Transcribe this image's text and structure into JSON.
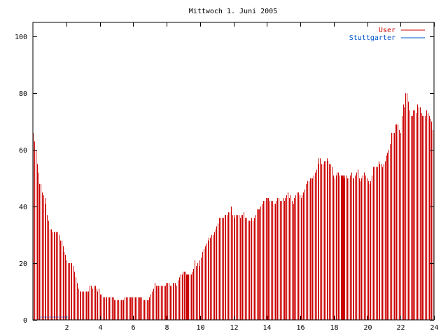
{
  "chart_data": {
    "type": "bar",
    "title": "Mittwoch 1. Juni 2005",
    "xlabel": "",
    "ylabel": "",
    "xlim": [
      0,
      24
    ],
    "ylim": [
      0,
      105
    ],
    "x_ticks": [
      2,
      4,
      6,
      8,
      10,
      12,
      14,
      16,
      18,
      20,
      22,
      24
    ],
    "y_ticks": [
      0,
      20,
      40,
      60,
      80,
      100
    ],
    "grid": false,
    "legend_position": "top-right",
    "series": [
      {
        "name": "User",
        "color": "#cc0000",
        "values": [
          66,
          63,
          60,
          55,
          52,
          48,
          48,
          45,
          44,
          43,
          41,
          37,
          35,
          32,
          32,
          31,
          31,
          31,
          31,
          31,
          30,
          28,
          28,
          26,
          24,
          23,
          21,
          20,
          20,
          20,
          20,
          19,
          17,
          15,
          13,
          11,
          10,
          10,
          10,
          10,
          10,
          10,
          10,
          10,
          12,
          12,
          11,
          12,
          12,
          11,
          10,
          11,
          9,
          9,
          8,
          8,
          8,
          8,
          8,
          8,
          8,
          8,
          8,
          7,
          7,
          7,
          7,
          7,
          7,
          7,
          7,
          8,
          8,
          8,
          8,
          8,
          8,
          8,
          8,
          8,
          8,
          8,
          8,
          8,
          8,
          7,
          7,
          7,
          7,
          7,
          8,
          9,
          10,
          11,
          13,
          12,
          12,
          12,
          12,
          12,
          12,
          12,
          12,
          13,
          13,
          13,
          12,
          12,
          13,
          13,
          13,
          12,
          14,
          15,
          16,
          16,
          17,
          17,
          17,
          16,
          16,
          16,
          16,
          17,
          18,
          21,
          19,
          20,
          21,
          19,
          22,
          24,
          25,
          26,
          27,
          28,
          29,
          29,
          30,
          30,
          31,
          32,
          33,
          34,
          36,
          36,
          36,
          36,
          37,
          37,
          37,
          38,
          38,
          40,
          37,
          36,
          37,
          37,
          37,
          37,
          36,
          37,
          37,
          38,
          36,
          36,
          35,
          35,
          35,
          36,
          35,
          36,
          37,
          39,
          39,
          39,
          40,
          41,
          42,
          42,
          43,
          43,
          43,
          42,
          42,
          42,
          41,
          41,
          42,
          43,
          43,
          42,
          42,
          43,
          42,
          43,
          44,
          45,
          43,
          44,
          42,
          41,
          43,
          44,
          45,
          45,
          44,
          43,
          44,
          45,
          46,
          48,
          49,
          49,
          50,
          50,
          50,
          51,
          52,
          53,
          55,
          57,
          57,
          55,
          55,
          56,
          56,
          57,
          56,
          55,
          55,
          54,
          51,
          50,
          51,
          52,
          52,
          51,
          51,
          51,
          50,
          51,
          51,
          50,
          50,
          51,
          52,
          50,
          50,
          51,
          52,
          53,
          50,
          49,
          50,
          51,
          52,
          51,
          50,
          49,
          48,
          49,
          51,
          54,
          54,
          54,
          54,
          56,
          55,
          55,
          54,
          55,
          56,
          58,
          59,
          60,
          62,
          66,
          66,
          66,
          69,
          69,
          69,
          67,
          66,
          72,
          76,
          75,
          80,
          80,
          77,
          74,
          72,
          72,
          74,
          74,
          73,
          76,
          75,
          75,
          73,
          72,
          72,
          72,
          74,
          73,
          72,
          71,
          70,
          67
        ],
        "highlight_indices": [
          119,
          239
        ]
      },
      {
        "name": "Stuttgarter",
        "color": "#0055cc",
        "values": [
          0,
          0,
          0,
          0,
          0,
          1,
          1,
          1,
          1,
          1,
          1,
          1,
          1,
          1,
          1,
          1,
          1,
          1,
          1,
          1,
          1,
          1,
          1,
          1,
          1,
          1,
          1,
          1,
          0,
          0,
          0,
          0,
          0,
          0,
          0,
          0,
          0,
          0,
          0,
          0,
          0,
          0,
          0,
          0,
          0,
          0,
          0,
          0,
          0,
          0,
          0,
          0,
          0,
          0,
          0,
          0,
          0,
          0,
          0,
          0,
          0,
          0,
          0,
          0,
          0,
          0,
          0,
          0,
          0,
          0,
          0,
          0,
          0,
          0,
          0,
          0,
          0,
          0,
          0,
          0,
          0,
          0,
          0,
          0,
          0,
          0,
          0,
          0,
          0,
          0,
          0,
          0,
          0,
          0,
          0,
          0,
          0,
          0,
          0,
          0,
          0,
          0,
          0,
          0,
          0,
          0,
          0,
          0,
          0,
          0,
          0,
          0,
          0,
          0,
          0,
          0,
          0,
          0,
          0,
          0,
          0,
          0,
          0,
          0,
          0,
          0,
          0,
          0,
          0,
          0,
          0,
          0,
          0,
          0,
          0,
          0,
          0,
          0,
          0,
          0,
          0,
          0,
          0,
          0,
          0,
          0,
          0,
          0,
          0,
          0,
          0,
          0,
          0,
          0,
          0,
          0,
          0,
          0,
          0,
          0,
          0,
          0,
          0,
          0,
          0,
          0,
          0,
          0,
          0,
          0,
          0,
          0,
          0,
          0,
          0,
          0,
          0,
          0,
          0,
          0,
          0,
          0,
          0,
          0,
          0,
          0,
          0,
          0,
          0,
          0,
          0,
          0,
          0,
          0,
          0,
          0,
          0,
          0,
          0,
          0,
          0,
          0,
          0,
          0,
          0,
          0,
          0,
          0,
          0,
          0,
          0,
          0,
          0,
          0,
          0,
          0,
          0,
          0,
          0,
          0,
          0,
          0,
          0,
          0,
          0,
          0,
          0,
          0,
          0,
          0,
          0,
          0,
          0,
          0,
          0,
          0,
          0,
          0,
          0,
          0,
          0,
          0,
          0,
          0,
          0,
          0,
          0,
          0,
          0,
          0,
          0,
          0,
          0,
          0,
          0,
          0,
          0,
          0,
          0,
          0,
          0,
          0,
          0,
          0,
          0,
          0,
          0,
          0,
          0,
          0,
          0,
          0,
          0,
          0,
          0,
          0,
          0,
          0,
          0,
          0,
          0,
          0,
          0,
          0,
          0,
          0,
          0,
          0,
          0,
          0,
          0,
          0,
          0,
          0,
          0,
          0,
          0,
          0,
          0,
          0,
          0,
          0,
          0,
          0,
          0,
          0,
          0
        ]
      }
    ]
  }
}
